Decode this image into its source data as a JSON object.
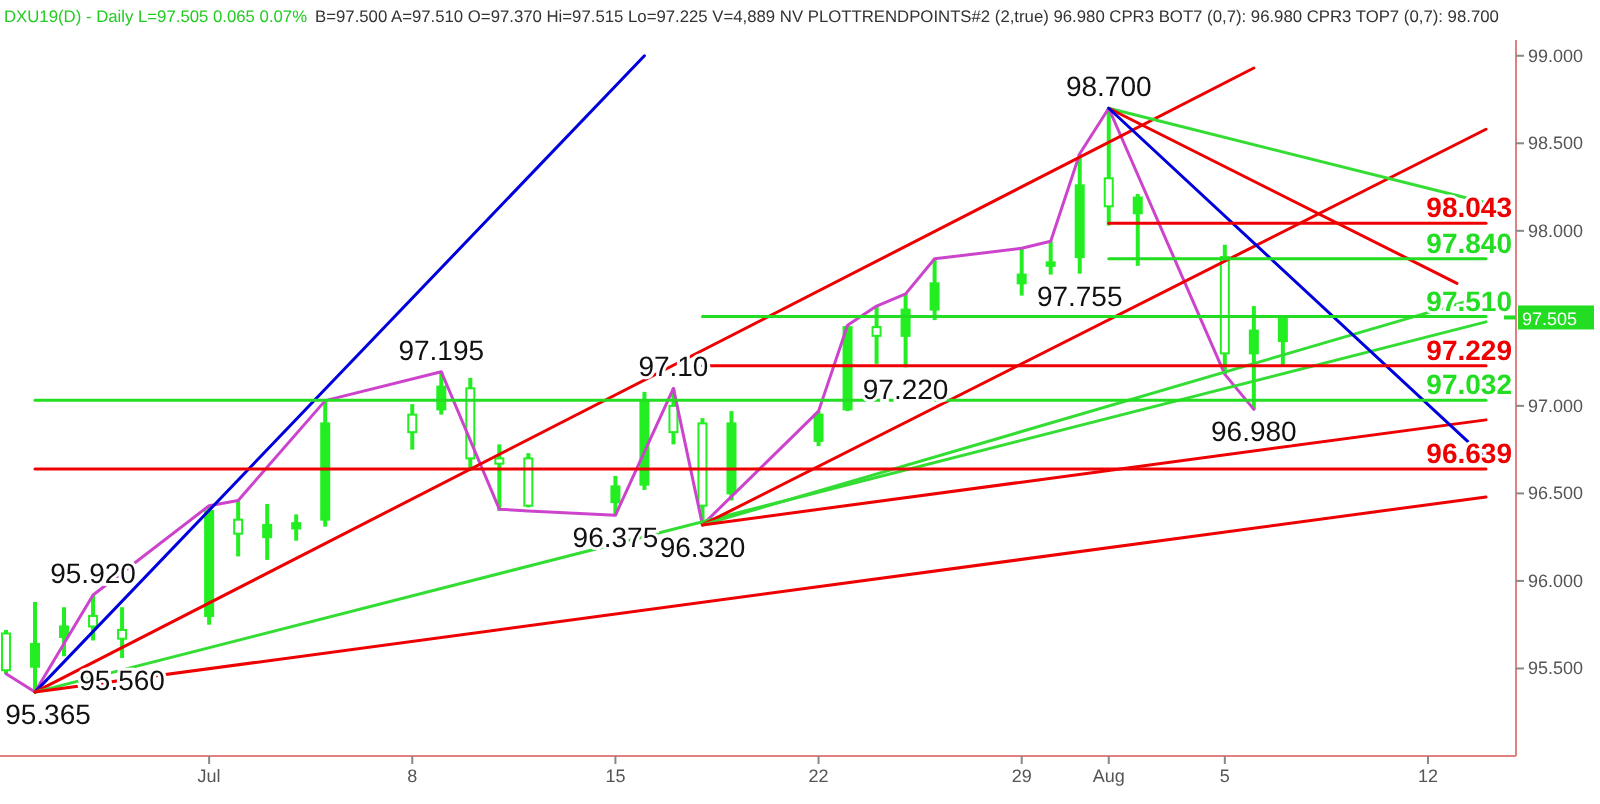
{
  "chart_data": {
    "type": "candlestick",
    "title": "DXU19(D) - Daily L=97.505 0.065 0.07%",
    "subtitle": "B=97.500 A=97.510 O=97.370 Hi=97.515 Lo=97.225 V=4,889 NV PLOTTRENDPOINTS#2 (2,true) 96.980 CPR3 BOT7 (0,7): 96.980 CPR3 TOP7 (0,7): 98.700",
    "color": "#22ee22",
    "x": [
      "--06-24",
      "--06-25",
      "--06-26",
      "--06-27",
      "--06-28",
      "--07-01",
      "--07-02",
      "--07-03",
      "--07-04",
      "--07-05",
      "--07-08",
      "--07-09",
      "--07-10",
      "--07-11",
      "--07-12",
      "--07-15",
      "--07-16",
      "--07-17",
      "--07-18",
      "--07-19",
      "--07-22",
      "--07-23",
      "--07-24",
      "--07-25",
      "--07-26",
      "--07-29",
      "--07-30",
      "--07-31",
      "--08-01",
      "--08-02",
      "--08-05",
      "--08-06",
      "--08-07"
    ],
    "ohlc": [
      [
        95.7,
        95.72,
        95.47,
        95.49
      ],
      [
        95.51,
        95.88,
        95.365,
        95.64
      ],
      [
        95.68,
        95.85,
        95.57,
        95.74
      ],
      [
        95.8,
        95.92,
        95.66,
        95.74
      ],
      [
        95.72,
        95.85,
        95.56,
        95.67
      ],
      [
        95.8,
        96.43,
        95.75,
        96.4
      ],
      [
        96.35,
        96.46,
        96.14,
        96.27
      ],
      [
        96.25,
        96.44,
        96.12,
        96.32
      ],
      [
        96.3,
        96.38,
        96.23,
        96.33
      ],
      [
        96.35,
        97.03,
        96.31,
        96.9
      ],
      [
        96.95,
        97.01,
        96.75,
        96.85
      ],
      [
        96.98,
        97.195,
        96.95,
        97.11
      ],
      [
        97.1,
        97.16,
        96.63,
        96.7
      ],
      [
        96.7,
        96.78,
        96.4,
        96.67
      ],
      [
        96.7,
        96.73,
        96.42,
        96.43
      ],
      [
        96.45,
        96.6,
        96.375,
        96.54
      ],
      [
        96.55,
        97.08,
        96.52,
        97.03
      ],
      [
        97.0,
        97.1,
        96.78,
        96.85
      ],
      [
        96.9,
        96.93,
        96.32,
        96.43
      ],
      [
        96.5,
        96.97,
        96.46,
        96.9
      ],
      [
        96.8,
        96.97,
        96.77,
        96.95
      ],
      [
        96.98,
        97.46,
        96.97,
        97.45
      ],
      [
        97.45,
        97.57,
        97.24,
        97.4
      ],
      [
        97.4,
        97.64,
        97.22,
        97.55
      ],
      [
        97.55,
        97.84,
        97.49,
        97.7
      ],
      [
        97.7,
        97.9,
        97.63,
        97.75
      ],
      [
        97.8,
        97.94,
        97.75,
        97.82
      ],
      [
        97.85,
        98.44,
        97.755,
        98.26
      ],
      [
        98.3,
        98.7,
        98.03,
        98.14
      ],
      [
        98.1,
        98.21,
        97.8,
        98.19
      ],
      [
        97.85,
        97.92,
        97.18,
        97.3
      ],
      [
        97.3,
        97.57,
        96.98,
        97.43
      ],
      [
        97.37,
        97.515,
        97.225,
        97.505
      ]
    ],
    "series": [
      {
        "type": "line",
        "color": "#cc44cc",
        "x": [
          "--06-24",
          "--06-25",
          "--06-27",
          "--07-01",
          "--07-02",
          "--07-05",
          "--07-09",
          "--07-11",
          "--07-12",
          "--07-15",
          "--07-17",
          "--07-18",
          "--07-22",
          "--07-23",
          "--07-24",
          "--07-25",
          "--07-26",
          "--07-29",
          "--07-30",
          "--07-31",
          "--08-01",
          "--08-05",
          "--08-06"
        ],
        "values": [
          95.47,
          95.365,
          95.92,
          96.43,
          96.46,
          97.03,
          97.195,
          96.41,
          96.4,
          96.375,
          97.1,
          96.32,
          96.97,
          97.46,
          97.57,
          97.64,
          97.84,
          97.9,
          97.94,
          98.44,
          98.7,
          97.18,
          96.98
        ]
      },
      {
        "type": "line",
        "color": "#0000dd",
        "x": [
          "--06-25",
          "--07-16"
        ],
        "values": [
          95.365,
          99.0
        ]
      },
      {
        "type": "line",
        "color": "#ee0000",
        "x": [
          "--06-25",
          "--08-06"
        ],
        "values": [
          95.365,
          98.93
        ]
      },
      {
        "type": "line",
        "color": "#33dd33",
        "x": [
          "--06-25",
          "--08-14"
        ],
        "values": [
          95.365,
          97.48
        ]
      },
      {
        "type": "line",
        "color": "#ee0000",
        "x": [
          "--06-25",
          "--08-14"
        ],
        "values": [
          95.365,
          96.48
        ]
      },
      {
        "type": "line",
        "color": "#ee0000",
        "x": [
          "--07-18",
          "--08-14"
        ],
        "values": [
          96.32,
          98.58
        ]
      },
      {
        "type": "line",
        "color": "#33dd33",
        "x": [
          "--07-18",
          "--08-14"
        ],
        "values": [
          96.32,
          97.63
        ]
      },
      {
        "type": "line",
        "color": "#ee0000",
        "x": [
          "--07-18",
          "--08-14"
        ],
        "values": [
          96.32,
          96.92
        ]
      },
      {
        "type": "line",
        "color": "#33dd33",
        "x": [
          "--08-01",
          "--08-14"
        ],
        "values": [
          98.7,
          98.16
        ]
      },
      {
        "type": "line",
        "color": "#ee0000",
        "x": [
          "--08-01",
          "--08-13"
        ],
        "values": [
          98.7,
          97.7
        ]
      },
      {
        "type": "line",
        "color": "#0000dd",
        "x": [
          "--08-01",
          "--08-14"
        ],
        "values": [
          98.7,
          96.7
        ]
      },
      {
        "type": "line",
        "name": "98.043",
        "color": "#ee0000",
        "x": [
          "--08-01",
          "--08-14"
        ],
        "values": [
          98.043,
          98.043
        ]
      },
      {
        "type": "line",
        "name": "97.840",
        "color": "#22dd22",
        "x": [
          "--08-01",
          "--08-14"
        ],
        "values": [
          97.84,
          97.84
        ]
      },
      {
        "type": "line",
        "name": "97.510",
        "color": "#22dd22",
        "x": [
          "--07-18",
          "--08-14"
        ],
        "values": [
          97.51,
          97.51
        ]
      },
      {
        "type": "line",
        "name": "97.229",
        "color": "#ee0000",
        "x": [
          "--07-18",
          "--08-14"
        ],
        "values": [
          97.229,
          97.229
        ]
      },
      {
        "type": "line",
        "name": "97.032",
        "color": "#22dd22",
        "x": [
          "--06-25",
          "--08-14"
        ],
        "values": [
          97.032,
          97.032
        ]
      },
      {
        "type": "line",
        "name": "96.639",
        "color": "#ee0000",
        "x": [
          "--06-25",
          "--08-14"
        ],
        "values": [
          96.639,
          96.639
        ]
      }
    ],
    "annotations": [
      {
        "text": "95.365",
        "x": "--06-25",
        "y": 95.365
      },
      {
        "text": "95.920",
        "x": "--06-27",
        "y": 95.92
      },
      {
        "text": "95.560",
        "x": "--06-28",
        "y": 95.56
      },
      {
        "text": "97.195",
        "x": "--07-09",
        "y": 97.195
      },
      {
        "text": "96.375",
        "x": "--07-15",
        "y": 96.375
      },
      {
        "text": "97.10",
        "x": "--07-17",
        "y": 97.1
      },
      {
        "text": "96.320",
        "x": "--07-18",
        "y": 96.32
      },
      {
        "text": "97.220",
        "x": "--07-25",
        "y": 97.22
      },
      {
        "text": "97.755",
        "x": "--07-31",
        "y": 97.755
      },
      {
        "text": "98.700",
        "x": "--08-01",
        "y": 98.7
      },
      {
        "text": "96.980",
        "x": "--08-06",
        "y": 96.98
      }
    ],
    "ref_lines": [
      {
        "axis": "y",
        "value": 97.505,
        "label": "97.505",
        "color": "#22dd22"
      }
    ],
    "xlim": [
      "--06-24",
      "--08-14"
    ],
    "xticks": [
      {
        "value": "--07-01",
        "label": "Jul"
      },
      {
        "value": "--07-08",
        "label": "8"
      },
      {
        "value": "--07-15",
        "label": "15"
      },
      {
        "value": "--07-22",
        "label": "22"
      },
      {
        "value": "--07-29",
        "label": "29"
      },
      {
        "value": "--08-01",
        "label": "Aug"
      },
      {
        "value": "--08-05",
        "label": "5"
      },
      {
        "value": "--08-12",
        "label": "12"
      }
    ],
    "ylim": [
      95.0,
      99.09
    ],
    "yticks": [
      {
        "value": 95.5,
        "label": "95.500"
      },
      {
        "value": 96,
        "label": "96.000"
      },
      {
        "value": 96.5,
        "label": "96.500"
      },
      {
        "value": 97,
        "label": "97.000"
      },
      {
        "value": 98,
        "label": "98.000"
      },
      {
        "value": 98.5,
        "label": "98.500"
      },
      {
        "value": 99,
        "label": "99.000"
      }
    ]
  }
}
